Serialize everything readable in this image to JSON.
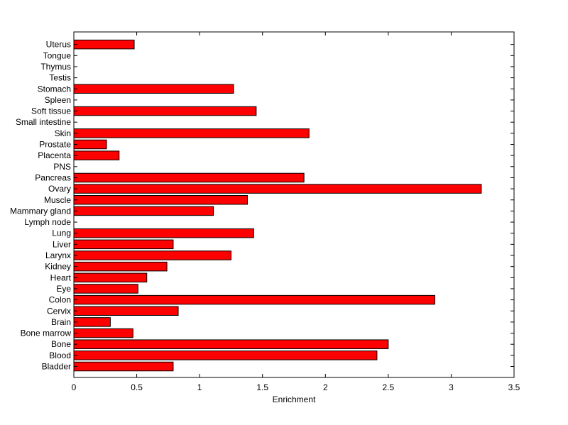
{
  "chart_data": {
    "type": "bar",
    "orientation": "horizontal",
    "categories": [
      "Bladder",
      "Blood",
      "Bone",
      "Bone marrow",
      "Brain",
      "Cervix",
      "Colon",
      "Eye",
      "Heart",
      "Kidney",
      "Larynx",
      "Liver",
      "Lung",
      "Lymph node",
      "Mammary gland",
      "Muscle",
      "Ovary",
      "Pancreas",
      "PNS",
      "Placenta",
      "Prostate",
      "Skin",
      "Small intestine",
      "Soft tissue",
      "Spleen",
      "Stomach",
      "Testis",
      "Thymus",
      "Tongue",
      "Uterus"
    ],
    "values": [
      0.79,
      2.41,
      2.5,
      0.47,
      0.29,
      0.83,
      2.87,
      0.51,
      0.58,
      0.74,
      1.25,
      0.79,
      1.43,
      0,
      1.11,
      1.38,
      3.24,
      1.83,
      0,
      0.36,
      0.26,
      1.87,
      0,
      1.45,
      0,
      1.27,
      0,
      0,
      0,
      0.48
    ],
    "xlabel": "Enrichment",
    "ylabel": "",
    "xlim": [
      0,
      3.5
    ],
    "xticks": [
      "0",
      "0.5",
      "1",
      "1.5",
      "2",
      "2.5",
      "3",
      "3.5"
    ],
    "bar_color": "#ff0000",
    "bar_edge_color": "#000000",
    "grid": false,
    "legend": "none"
  }
}
